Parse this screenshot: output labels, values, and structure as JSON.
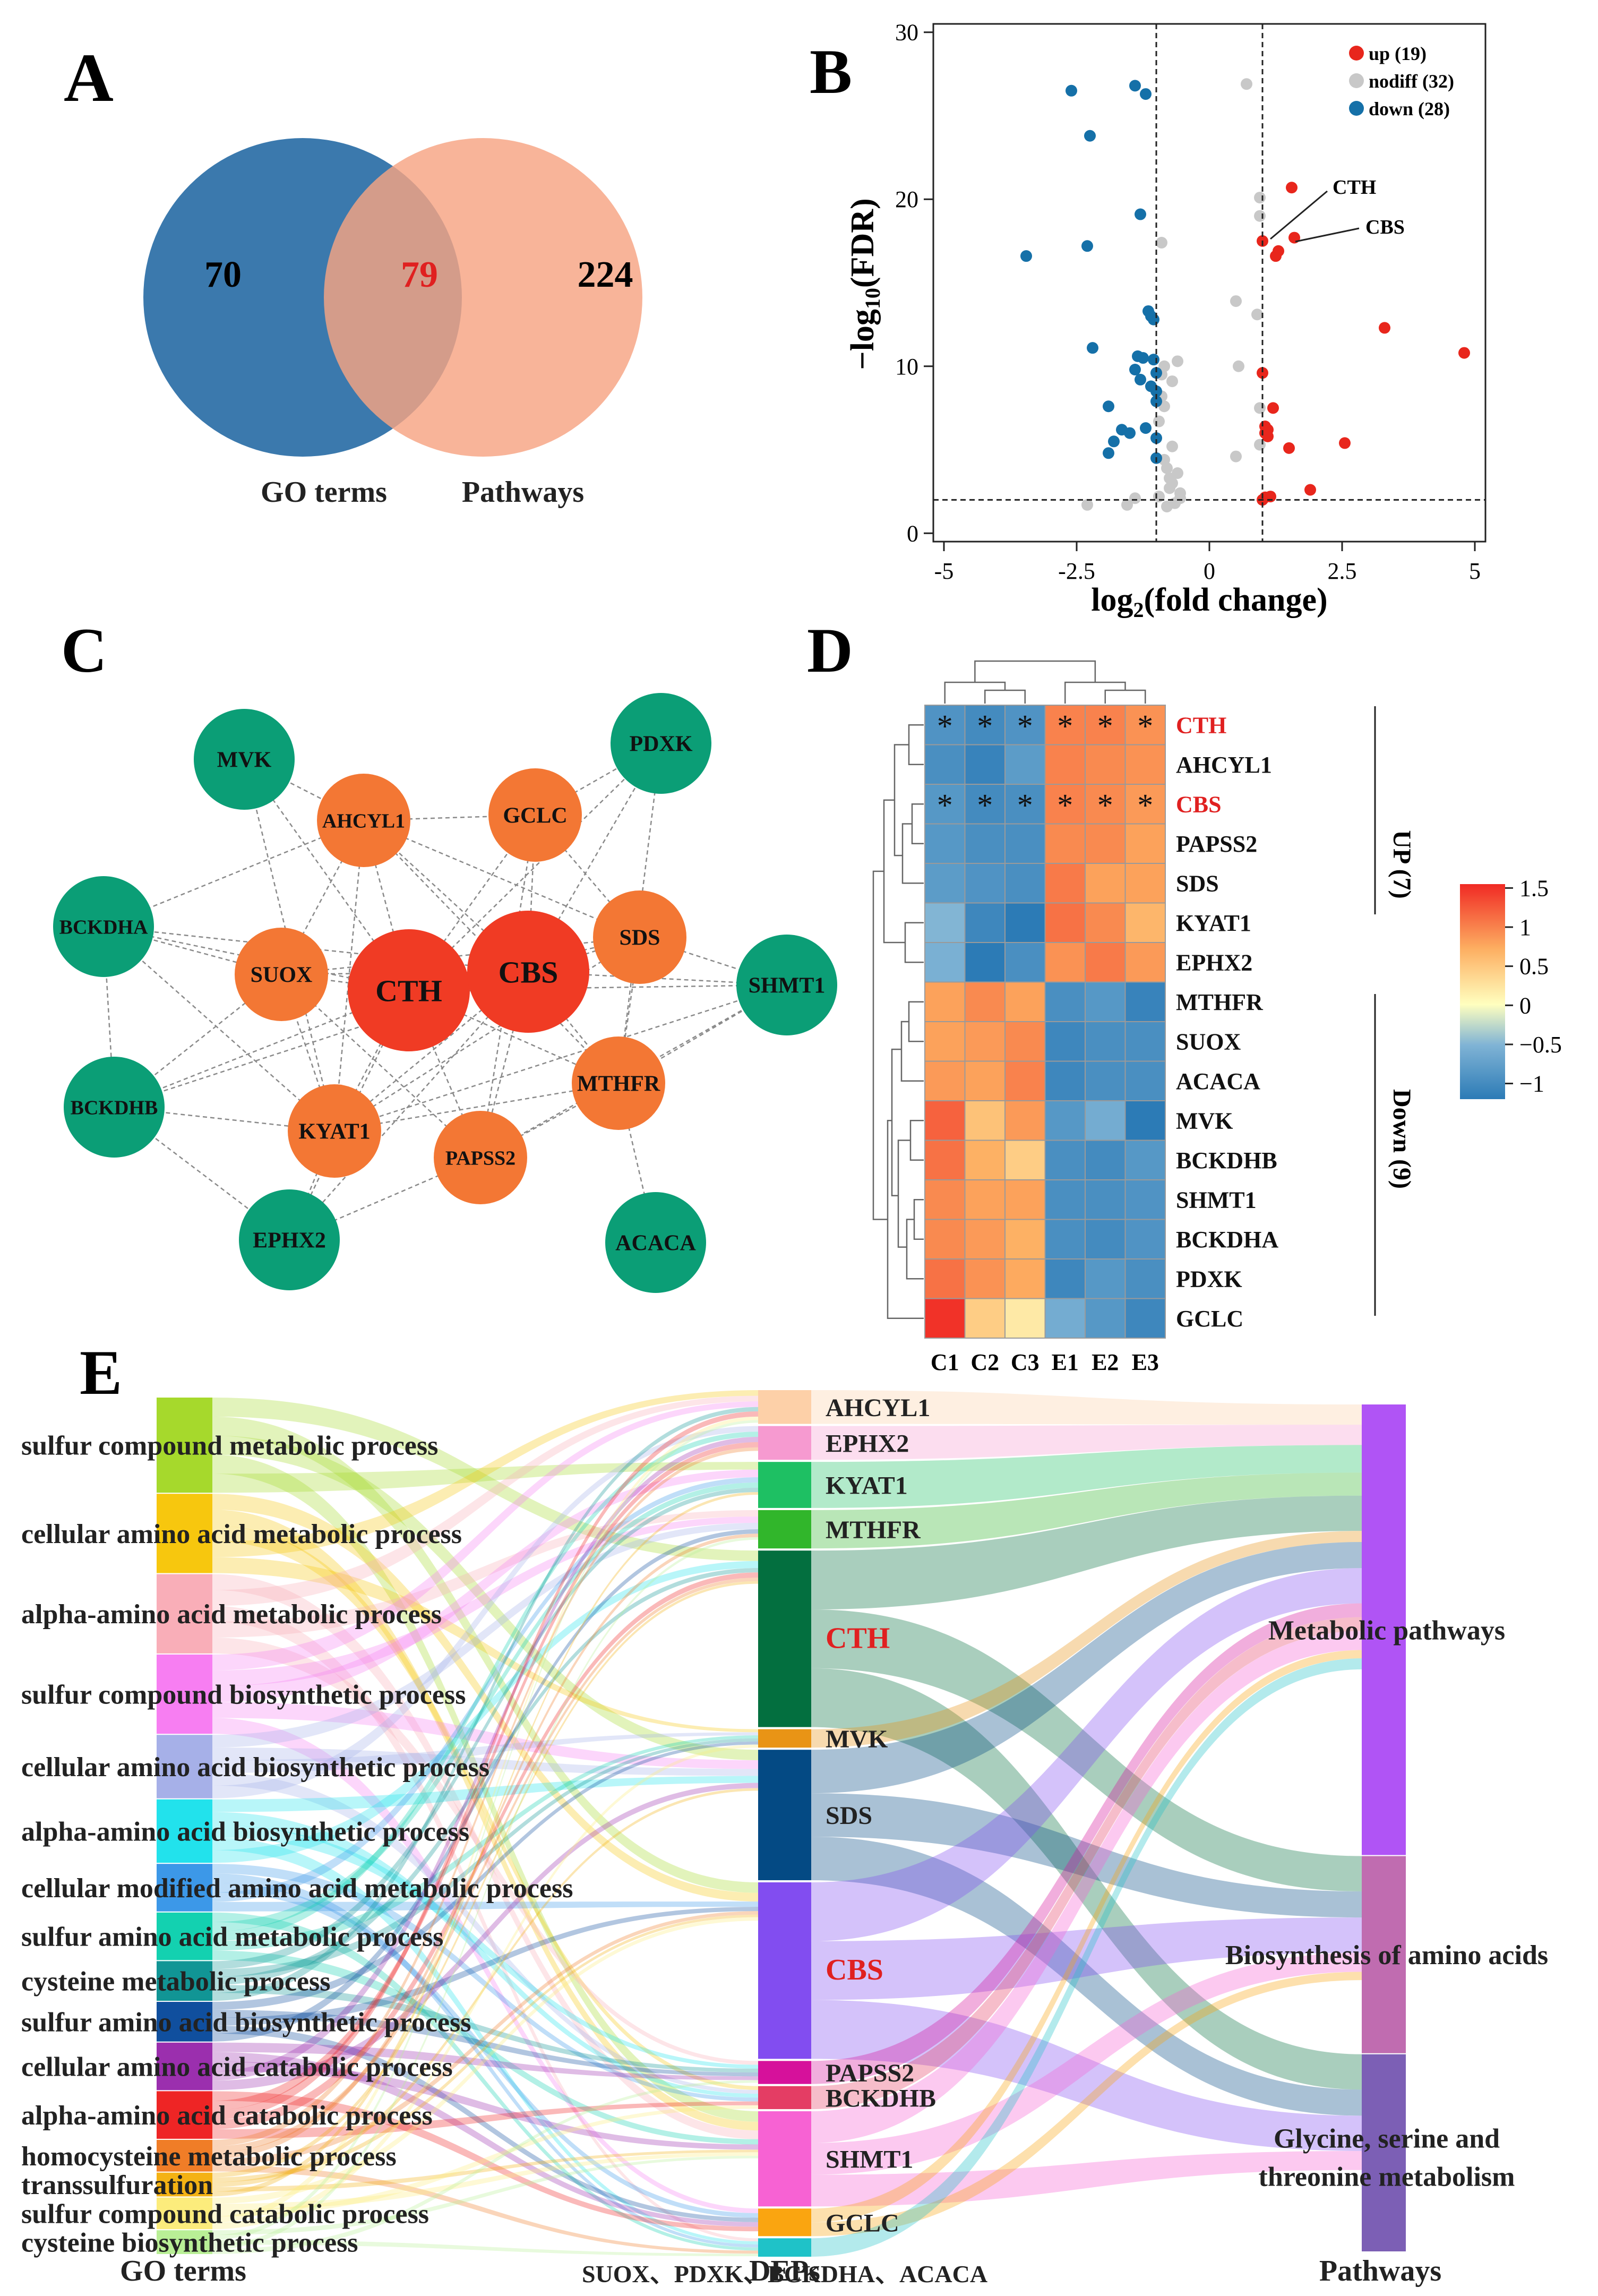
{
  "panel_labels": {
    "a": "A",
    "b": "B",
    "c": "C",
    "d": "D",
    "e": "E"
  },
  "venn": {
    "left_count": "70",
    "overlap_count": "79",
    "right_count": "224",
    "left_label": "GO terms",
    "right_label": "Pathways",
    "colors": {
      "left": "#3b79ad",
      "right": "#f7a382",
      "overlap_text": "#e02020"
    }
  },
  "volcano": {
    "x_label_a": "log",
    "x_label_sub": "2",
    "x_label_b": "(fold change)",
    "y_label_a": "−log",
    "y_label_sub": "10",
    "y_label_b": "(FDR)",
    "x_ticks": [
      "-5",
      "-2.5",
      "0",
      "2.5",
      "5"
    ],
    "y_ticks": [
      "0",
      "10",
      "20",
      "30"
    ],
    "legend": [
      "up (19)",
      "nodiff (32)",
      "down (28)"
    ],
    "annotations": [
      "CTH",
      "CBS"
    ],
    "colors": {
      "up": "#e8261c",
      "nodiff": "#c8c8c8",
      "down": "#1570a8"
    }
  },
  "chart_data": [
    {
      "type": "scatter",
      "title": "",
      "xlabel": "log2(fold change)",
      "ylabel": "-log10(FDR)",
      "xlim": [
        -5.2,
        5.2
      ],
      "ylim": [
        -0.5,
        30.5
      ],
      "thresholds": {
        "x": [
          -1,
          1
        ],
        "y": 2
      },
      "series": [
        {
          "name": "up (19)",
          "points": [
            [
              1.55,
              20.7
            ],
            [
              1.0,
              17.5
            ],
            [
              1.6,
              17.7
            ],
            [
              1.3,
              16.9
            ],
            [
              1.25,
              16.6
            ],
            [
              3.3,
              12.3
            ],
            [
              4.8,
              10.8
            ],
            [
              1.0,
              9.6
            ],
            [
              1.05,
              6.4
            ],
            [
              1.05,
              6.0
            ],
            [
              1.1,
              5.8
            ],
            [
              1.5,
              5.1
            ],
            [
              2.55,
              5.4
            ],
            [
              1.9,
              2.6
            ],
            [
              1.05,
              2.15
            ],
            [
              1.15,
              2.2
            ],
            [
              1.0,
              2.0
            ],
            [
              1.1,
              6.2
            ],
            [
              1.2,
              7.5
            ]
          ]
        },
        {
          "name": "nodiff (32)",
          "points": [
            [
              0.7,
              26.9
            ],
            [
              0.95,
              20.1
            ],
            [
              0.95,
              19.0
            ],
            [
              -0.9,
              17.4
            ],
            [
              0.5,
              13.9
            ],
            [
              0.9,
              13.1
            ],
            [
              -0.6,
              10.3
            ],
            [
              -0.85,
              10.0
            ],
            [
              0.55,
              10.0
            ],
            [
              -0.9,
              9.5
            ],
            [
              -0.7,
              9.1
            ],
            [
              -0.9,
              8.2
            ],
            [
              -0.85,
              7.6
            ],
            [
              0.95,
              7.5
            ],
            [
              -0.95,
              6.7
            ],
            [
              0.95,
              5.3
            ],
            [
              -0.7,
              5.2
            ],
            [
              0.5,
              4.6
            ],
            [
              -0.85,
              4.4
            ],
            [
              -0.8,
              3.9
            ],
            [
              -0.6,
              3.6
            ],
            [
              -0.75,
              3.3
            ],
            [
              -0.7,
              3.0
            ],
            [
              -0.75,
              2.7
            ],
            [
              -0.55,
              2.4
            ],
            [
              -0.95,
              2.2
            ],
            [
              -0.65,
              1.8
            ],
            [
              -1.4,
              2.1
            ],
            [
              -1.55,
              1.7
            ],
            [
              -2.3,
              1.7
            ],
            [
              -0.55,
              2.1
            ],
            [
              -0.8,
              1.6
            ]
          ]
        },
        {
          "name": "down (28)",
          "points": [
            [
              -2.6,
              26.5
            ],
            [
              -1.4,
              26.8
            ],
            [
              -1.2,
              26.3
            ],
            [
              -2.25,
              23.8
            ],
            [
              -1.3,
              19.1
            ],
            [
              -2.3,
              17.2
            ],
            [
              -3.45,
              16.6
            ],
            [
              -1.15,
              13.3
            ],
            [
              -1.1,
              13.0
            ],
            [
              -1.05,
              12.8
            ],
            [
              -2.2,
              11.1
            ],
            [
              -1.35,
              10.6
            ],
            [
              -1.25,
              10.5
            ],
            [
              -1.05,
              10.4
            ],
            [
              -1.4,
              9.8
            ],
            [
              -1.0,
              9.6
            ],
            [
              -1.3,
              9.2
            ],
            [
              -1.1,
              8.8
            ],
            [
              -1.0,
              8.5
            ],
            [
              -1.0,
              7.9
            ],
            [
              -1.9,
              7.6
            ],
            [
              -1.2,
              6.3
            ],
            [
              -1.65,
              6.2
            ],
            [
              -1.5,
              6.0
            ],
            [
              -1.0,
              5.7
            ],
            [
              -1.8,
              5.5
            ],
            [
              -1.9,
              4.8
            ],
            [
              -1.0,
              4.5
            ]
          ]
        }
      ]
    },
    {
      "type": "heatmap",
      "title": "",
      "columns": [
        "C1",
        "C2",
        "C3",
        "E1",
        "E2",
        "E3"
      ],
      "rows": [
        "CTH",
        "AHCYL1",
        "CBS",
        "PAPSS2",
        "SDS",
        "KYAT1",
        "EPHX2",
        "MTHFR",
        "SUOX",
        "ACACA",
        "MVK",
        "BCKDHB",
        "SHMT1",
        "BCKDHA",
        "PDXK",
        "GCLC"
      ],
      "highlight_rows": [
        "CTH",
        "CBS"
      ],
      "significant_rows": [
        "CTH",
        "CBS"
      ],
      "values": [
        [
          -0.9,
          -1.0,
          -0.9,
          1.0,
          1.0,
          0.9
        ],
        [
          -0.95,
          -1.1,
          -0.8,
          1.0,
          0.95,
          0.9
        ],
        [
          -0.85,
          -1.0,
          -0.95,
          1.0,
          0.95,
          0.85
        ],
        [
          -0.85,
          -0.95,
          -0.95,
          0.95,
          0.95,
          0.8
        ],
        [
          -0.8,
          -0.9,
          -0.95,
          1.05,
          0.8,
          0.8
        ],
        [
          -0.5,
          -1.05,
          -1.2,
          1.1,
          0.95,
          0.65
        ],
        [
          -0.55,
          -1.3,
          -0.95,
          0.9,
          1.05,
          0.85
        ],
        [
          0.8,
          0.95,
          0.8,
          -0.95,
          -0.85,
          -1.1
        ],
        [
          0.8,
          0.85,
          0.95,
          -1.05,
          -0.95,
          -0.95
        ],
        [
          0.85,
          0.8,
          1.0,
          -1.05,
          -0.95,
          -0.95
        ],
        [
          1.2,
          0.55,
          0.85,
          -0.85,
          -0.6,
          -1.2
        ],
        [
          1.1,
          0.7,
          0.45,
          -0.95,
          -1.0,
          -0.85
        ],
        [
          0.95,
          0.8,
          0.8,
          -0.95,
          -0.95,
          -0.9
        ],
        [
          0.95,
          0.85,
          0.7,
          -0.95,
          -1.0,
          -0.9
        ],
        [
          1.1,
          0.9,
          0.75,
          -1.05,
          -0.85,
          -0.95
        ],
        [
          1.5,
          0.45,
          0.2,
          -0.6,
          -0.85,
          -1.05
        ]
      ],
      "group_labels": [
        "UP (7)",
        "Down (9)"
      ],
      "legend_ticks": [
        "1.5",
        "1",
        "0.5",
        "0",
        "−0.5",
        "−1"
      ],
      "legend_range": [
        -1.2,
        1.55
      ]
    }
  ],
  "network": {
    "nodes": [
      {
        "id": "MVK",
        "label": "MVK",
        "color": "#0b9e76",
        "size": "large",
        "red": false
      },
      {
        "id": "PDXK",
        "label": "PDXK",
        "color": "#0b9e76",
        "size": "large",
        "red": false
      },
      {
        "id": "AHCYL1",
        "label": "AHCYL1",
        "color": "#f37734",
        "size": "medium",
        "red": false
      },
      {
        "id": "GCLC",
        "label": "GCLC",
        "color": "#f37734",
        "size": "medium",
        "red": false
      },
      {
        "id": "BCKDHA",
        "label": "BCKDHA",
        "color": "#0b9e76",
        "size": "large",
        "red": false
      },
      {
        "id": "SUOX",
        "label": "SUOX",
        "color": "#f37734",
        "size": "medium",
        "red": false
      },
      {
        "id": "CTH",
        "label": "CTH",
        "color": "#f03b24",
        "size": "xlarge",
        "red": true
      },
      {
        "id": "CBS",
        "label": "CBS",
        "color": "#f03b24",
        "size": "xlarge",
        "red": true
      },
      {
        "id": "SDS",
        "label": "SDS",
        "color": "#f37734",
        "size": "medium",
        "red": false
      },
      {
        "id": "SHMT1",
        "label": "SHMT1",
        "color": "#0b9e76",
        "size": "large",
        "red": false
      },
      {
        "id": "BCKDHB",
        "label": "BCKDHB",
        "color": "#0b9e76",
        "size": "large",
        "red": false
      },
      {
        "id": "KYAT1",
        "label": "KYAT1",
        "color": "#f37734",
        "size": "medium",
        "red": false
      },
      {
        "id": "PAPSS2",
        "label": "PAPSS2",
        "color": "#f37734",
        "size": "medium",
        "red": false
      },
      {
        "id": "MTHFR",
        "label": "MTHFR",
        "color": "#f37734",
        "size": "medium",
        "red": false
      },
      {
        "id": "EPHX2",
        "label": "EPHX2",
        "color": "#0b9e76",
        "size": "large",
        "red": false
      },
      {
        "id": "ACACA",
        "label": "ACACA",
        "color": "#0b9e76",
        "size": "large",
        "red": false
      }
    ],
    "edges": [
      [
        "CTH",
        "CBS"
      ],
      [
        "CTH",
        "AHCYL1"
      ],
      [
        "CTH",
        "GCLC"
      ],
      [
        "CTH",
        "SUOX"
      ],
      [
        "CTH",
        "SDS"
      ],
      [
        "CTH",
        "KYAT1"
      ],
      [
        "CTH",
        "PAPSS2"
      ],
      [
        "CTH",
        "MTHFR"
      ],
      [
        "CTH",
        "BCKDHA"
      ],
      [
        "CTH",
        "BCKDHB"
      ],
      [
        "CTH",
        "SHMT1"
      ],
      [
        "CTH",
        "MVK"
      ],
      [
        "CTH",
        "EPHX2"
      ],
      [
        "CTH",
        "PDXK"
      ],
      [
        "CBS",
        "AHCYL1"
      ],
      [
        "CBS",
        "GCLC"
      ],
      [
        "CBS",
        "SUOX"
      ],
      [
        "CBS",
        "SDS"
      ],
      [
        "CBS",
        "KYAT1"
      ],
      [
        "CBS",
        "PAPSS2"
      ],
      [
        "CBS",
        "MTHFR"
      ],
      [
        "CBS",
        "SHMT1"
      ],
      [
        "CBS",
        "BCKDHA"
      ],
      [
        "CBS",
        "PDXK"
      ],
      [
        "CBS",
        "EPHX2"
      ],
      [
        "CBS",
        "BCKDHB"
      ],
      [
        "AHCYL1",
        "SDS"
      ],
      [
        "AHCYL1",
        "SUOX"
      ],
      [
        "AHCYL1",
        "MTHFR"
      ],
      [
        "AHCYL1",
        "KYAT1"
      ],
      [
        "AHCYL1",
        "BCKDHA"
      ],
      [
        "AHCYL1",
        "GCLC"
      ],
      [
        "GCLC",
        "SDS"
      ],
      [
        "GCLC",
        "PDXK"
      ],
      [
        "GCLC",
        "PAPSS2"
      ],
      [
        "SDS",
        "SHMT1"
      ],
      [
        "SDS",
        "KYAT1"
      ],
      [
        "SDS",
        "MTHFR"
      ],
      [
        "SDS",
        "SUOX"
      ],
      [
        "SHMT1",
        "MTHFR"
      ],
      [
        "SHMT1",
        "KYAT1"
      ],
      [
        "SHMT1",
        "PAPSS2"
      ],
      [
        "BCKDHA",
        "BCKDHB"
      ],
      [
        "BCKDHA",
        "SUOX"
      ],
      [
        "BCKDHA",
        "KYAT1"
      ],
      [
        "BCKDHB",
        "KYAT1"
      ],
      [
        "BCKDHB",
        "EPHX2"
      ],
      [
        "BCKDHB",
        "SUOX"
      ],
      [
        "KYAT1",
        "EPHX2"
      ],
      [
        "KYAT1",
        "SUOX"
      ],
      [
        "KYAT1",
        "MTHFR"
      ],
      [
        "PAPSS2",
        "MTHFR"
      ],
      [
        "PAPSS2",
        "EPHX2"
      ],
      [
        "PAPSS2",
        "SUOX"
      ],
      [
        "MTHFR",
        "ACACA"
      ],
      [
        "MTHFR",
        "PDXK"
      ],
      [
        "MVK",
        "AHCYL1"
      ],
      [
        "MVK",
        "KYAT1"
      ]
    ]
  },
  "sankey": {
    "axis_labels": [
      "GO terms",
      "DEPs",
      "Pathways"
    ],
    "go_terms": [
      {
        "label": "sulfur compound metabolic process",
        "color": "#a6d92c",
        "w": 6
      },
      {
        "label": "cellular amino acid metabolic process",
        "color": "#f7c70e",
        "w": 5
      },
      {
        "label": "alpha-amino acid metabolic process",
        "color": "#f9aeb8",
        "w": 5
      },
      {
        "label": "sulfur compound biosynthetic process",
        "color": "#f77ef2",
        "w": 5
      },
      {
        "label": "cellular amino acid biosynthetic process",
        "color": "#a6b0e8",
        "w": 4
      },
      {
        "label": "alpha-amino acid biosynthetic process",
        "color": "#22e2ec",
        "w": 4
      },
      {
        "label": "cellular modified amino acid metabolic process",
        "color": "#3c98e8",
        "w": 3
      },
      {
        "label": "sulfur amino acid metabolic process",
        "color": "#13d1b0",
        "w": 3
      },
      {
        "label": "cysteine metabolic process",
        "color": "#119595",
        "w": 2.5
      },
      {
        "label": "sulfur amino acid biosynthetic process",
        "color": "#104f9e",
        "w": 2.5
      },
      {
        "label": "cellular amino acid catabolic process",
        "color": "#9b2fae",
        "w": 3
      },
      {
        "label": "alpha-amino acid catabolic process",
        "color": "#ee2525",
        "w": 3
      },
      {
        "label": "homocysteine metabolic process",
        "color": "#f07d27",
        "w": 2
      },
      {
        "label": "transsulfuration",
        "color": "#f4b214",
        "w": 1.5
      },
      {
        "label": "sulfur compound catabolic process",
        "color": "#fcec7c",
        "w": 2
      },
      {
        "label": "cysteine biosynthetic process",
        "color": "#b9ef96",
        "w": 1.5
      }
    ],
    "deps": [
      {
        "label": "AHCYL1",
        "color": "#fdd0a8",
        "w": 2.2,
        "red": false
      },
      {
        "label": "EPHX2",
        "color": "#f69ad0",
        "w": 2.2,
        "red": false
      },
      {
        "label": "KYAT1",
        "color": "#1ec063",
        "w": 3,
        "red": false
      },
      {
        "label": "MTHFR",
        "color": "#31b62b",
        "w": 2.5,
        "red": false
      },
      {
        "label": "CTH",
        "color": "#036f3f",
        "w": 11.5,
        "red": true
      },
      {
        "label": "MVK",
        "color": "#e99415",
        "w": 1.2,
        "red": false
      },
      {
        "label": "SDS",
        "color": "#044a84",
        "w": 8.5,
        "red": false
      },
      {
        "label": "CBS",
        "color": "#824df0",
        "w": 11.5,
        "red": true
      },
      {
        "label": "PAPSS2",
        "color": "#d6119b",
        "w": 1.5,
        "red": false
      },
      {
        "label": "BCKDHB",
        "color": "#e43d64",
        "w": 1.5,
        "red": false
      },
      {
        "label": "SHMT1",
        "color": "#f762d3",
        "w": 6.2,
        "red": false
      },
      {
        "label": "GCLC",
        "color": "#faa510",
        "w": 1.8,
        "red": false
      },
      {
        "label": "SUOX、PDXK、BCKDHA、ACACA",
        "color": "#1fc2c8",
        "w": 1.2,
        "red": false
      }
    ],
    "pathways": [
      {
        "label": "Metabolic pathways",
        "color": "#b054f5",
        "w": 16
      },
      {
        "label": "Biosynthesis of amino acids",
        "color": "#c06cb0",
        "w": 7
      },
      {
        "label": "Glycine, serine and",
        "label2": "threonine metabolism",
        "color": "#7c5fb5",
        "w": 7
      }
    ]
  }
}
